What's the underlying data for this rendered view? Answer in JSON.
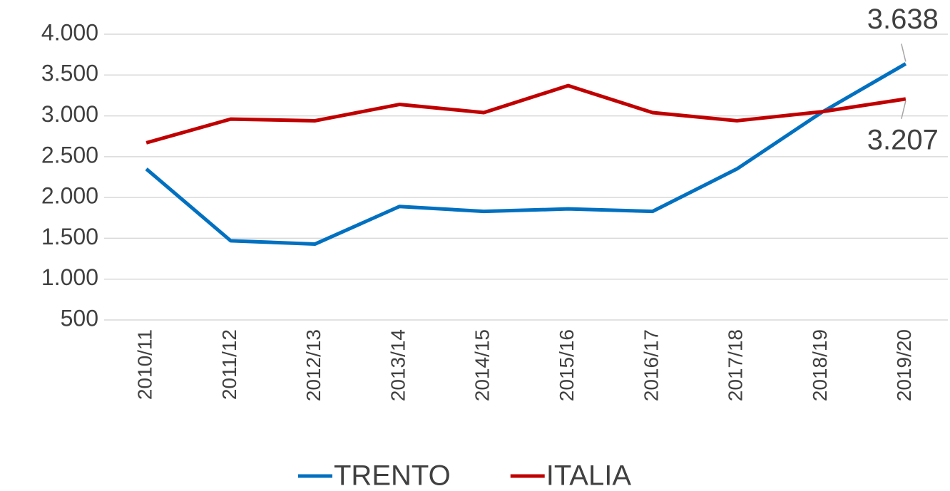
{
  "chart_data": {
    "type": "line",
    "categories": [
      "2010/11",
      "2011/12",
      "2012/13",
      "2013/14",
      "2014/15",
      "2015/16",
      "2016/17",
      "2017/18",
      "2018/19",
      "2019/20"
    ],
    "series": [
      {
        "name": "TRENTO",
        "color": "#0070c0",
        "values": [
          2350,
          1470,
          1430,
          1890,
          1830,
          1860,
          1830,
          2350,
          3040,
          3638
        ],
        "value_labels": [
          null,
          null,
          null,
          null,
          null,
          null,
          null,
          null,
          null,
          "3.638"
        ]
      },
      {
        "name": "ITALIA",
        "color": "#c00000",
        "values": [
          2670,
          2960,
          2940,
          3140,
          3040,
          3370,
          3040,
          2940,
          3050,
          3207
        ],
        "value_labels": [
          null,
          null,
          null,
          null,
          null,
          null,
          null,
          null,
          null,
          "3.207"
        ]
      }
    ],
    "ylim": [
      500,
      4000
    ],
    "yticks": [
      500,
      {
        "value": 1000,
        "label": "1.000"
      },
      {
        "value": 1500,
        "label": "1.500"
      },
      {
        "value": 2000,
        "label": "2.000"
      },
      {
        "value": 2500,
        "label": "2.500"
      },
      {
        "value": 3000,
        "label": "3.000"
      },
      {
        "value": 3500,
        "label": "3.500"
      },
      {
        "value": 4000,
        "label": "4.000"
      }
    ],
    "grid": true,
    "legend": "bottom"
  }
}
